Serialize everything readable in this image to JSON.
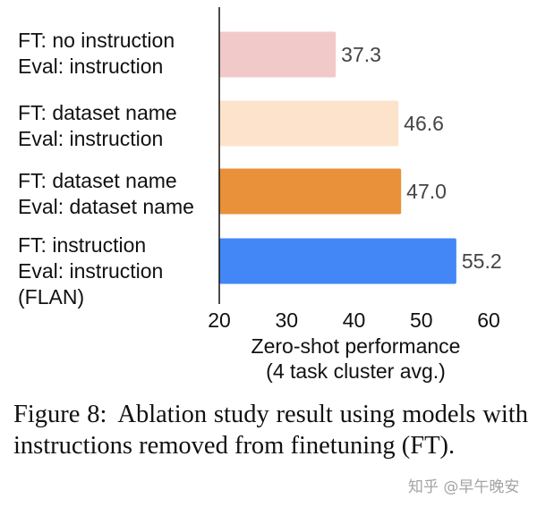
{
  "chart_data": {
    "type": "bar",
    "orientation": "horizontal",
    "categories": [
      [
        "FT: no instruction",
        "Eval: instruction"
      ],
      [
        "FT: dataset name",
        "Eval: instruction"
      ],
      [
        "FT: dataset name",
        "Eval: dataset name"
      ],
      [
        "FT: instruction",
        "Eval: instruction",
        "(FLAN)"
      ]
    ],
    "values": [
      37.3,
      46.6,
      47.0,
      55.2
    ],
    "value_labels": [
      "37.3",
      "46.6",
      "47.0",
      "55.2"
    ],
    "colors": [
      "#f2c9c9",
      "#fde3cc",
      "#e8913a",
      "#4287f5"
    ],
    "xlabel": [
      "Zero-shot performance",
      "(4 task cluster avg.)"
    ],
    "xlim": [
      20,
      60
    ],
    "xticks": [
      20,
      30,
      40,
      50,
      60
    ],
    "grid": false
  },
  "caption": {
    "number": "Figure 8:",
    "text": "Ablation study result using models with instructions removed from finetuning (FT)."
  },
  "watermark": "知乎 @早午晚安"
}
